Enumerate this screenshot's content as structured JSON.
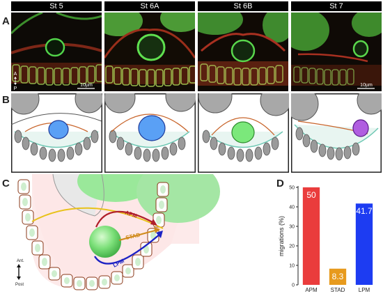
{
  "panels": {
    "a": "A",
    "b": "B",
    "c": "C",
    "d": "D"
  },
  "stages": [
    "St 5",
    "St 6A",
    "St 6B",
    "St 7"
  ],
  "scale_bar_label": "10µm",
  "axis_a": {
    "anterior": "A",
    "posterior": "P"
  },
  "panel_c": {
    "paths": [
      {
        "label": "APM",
        "color": "#b01f2a"
      },
      {
        "label": "STAD",
        "color": "#d08a1a"
      },
      {
        "label": "LPM",
        "color": "#1c22c4"
      }
    ],
    "yellow_path_color": "#e8c21a",
    "axis": {
      "anterior": "Ant.",
      "posterior": "Post"
    }
  },
  "colors": {
    "micro_red": "#c0262a",
    "micro_green": "#3fd34a",
    "nucleus_blue": "#5aa0f5",
    "nucleus_green": "#7be87b",
    "nucleus_purple": "#b05ee0",
    "cell_gray": "#9a9a9a",
    "membrane_orange": "#c8642a",
    "membrane_teal": "#6fc8b4"
  },
  "chart_data": {
    "type": "bar",
    "categories": [
      "APM",
      "STAD",
      "LPM"
    ],
    "values": [
      50,
      8.3,
      41.7
    ],
    "data_labels": [
      "50",
      "8.3",
      "41.7"
    ],
    "colors": [
      "#ea3c3c",
      "#e79a1d",
      "#1d3cf2"
    ],
    "ylabel": "migrations (%)",
    "ylim": [
      0,
      50
    ],
    "yticks": [
      0,
      10,
      20,
      30,
      40,
      50
    ]
  }
}
